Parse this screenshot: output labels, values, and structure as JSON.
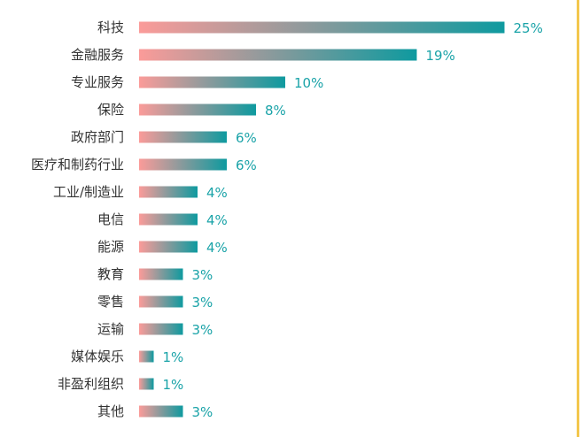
{
  "chart_data": {
    "type": "bar",
    "orientation": "horizontal",
    "categories": [
      "科技",
      "金融服务",
      "专业服务",
      "保险",
      "政府部门",
      "医疗和制药行业",
      "工业/制造业",
      "电信",
      "能源",
      "教育",
      "零售",
      "运输",
      "媒体娱乐",
      "非盈利组织",
      "其他"
    ],
    "values": [
      25,
      19,
      10,
      8,
      6,
      6,
      4,
      4,
      4,
      3,
      3,
      3,
      1,
      1,
      3
    ],
    "value_labels": [
      "25%",
      "19%",
      "10%",
      "8%",
      "6%",
      "6%",
      "4%",
      "4%",
      "4%",
      "3%",
      "3%",
      "3%",
      "1%",
      "1%",
      "3%"
    ],
    "unit": "%",
    "title": "",
    "xlabel": "",
    "ylabel": "",
    "grid": false,
    "legend": "none"
  },
  "colors": {
    "bar_start": "#fb9b99",
    "bar_end": "#0e9a9f",
    "label_text": "#333333",
    "value_text": "#1aa3a8",
    "accent": "#f3c74e"
  }
}
